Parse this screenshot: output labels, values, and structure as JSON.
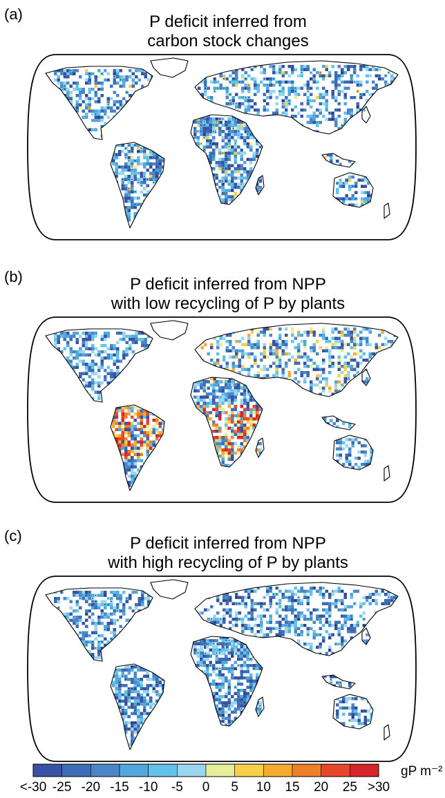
{
  "panels": [
    {
      "id": "a",
      "label": "(a)",
      "title_line1": "P deficit inferred from",
      "title_line2": "carbon stock changes",
      "mode": "carbon"
    },
    {
      "id": "b",
      "label": "(b)",
      "title_line1": "P deficit inferred from NPP",
      "title_line2": "with low recycling of P by plants",
      "mode": "low"
    },
    {
      "id": "c",
      "label": "(c)",
      "title_line1": "P deficit inferred from NPP",
      "title_line2": "with high recycling of P by plants",
      "mode": "high"
    }
  ],
  "colorbar": {
    "unit": "gP m⁻²",
    "tick_labels": [
      "<-30",
      "-25",
      "-20",
      "-15",
      "-10",
      "-5",
      "0",
      "5",
      "10",
      "15",
      "20",
      "25",
      ">30"
    ],
    "colors": [
      "#3a52a3",
      "#3f6cb6",
      "#4a86c8",
      "#52a7dc",
      "#62c2ea",
      "#9ad6ef",
      "#e6ee9a",
      "#f6d04a",
      "#f4ab2f",
      "#ef7f29",
      "#e8462a",
      "#d7262a"
    ]
  }
}
